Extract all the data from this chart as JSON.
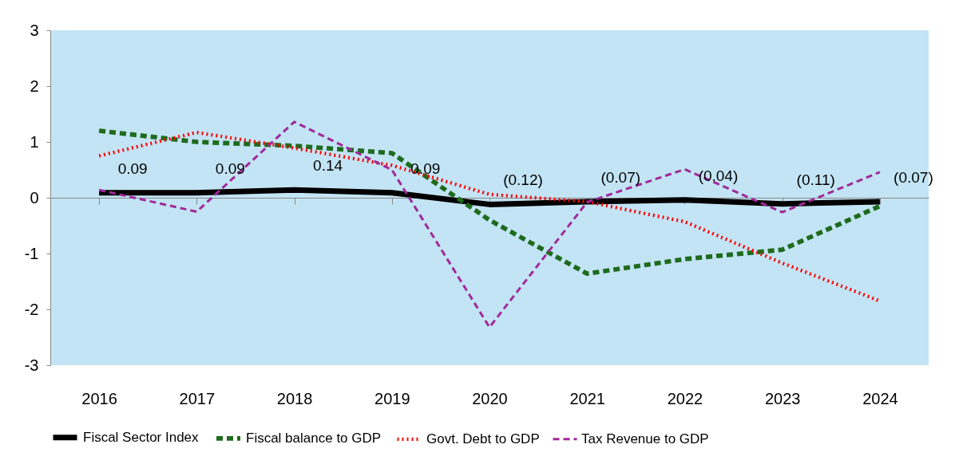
{
  "chart_data": {
    "type": "line",
    "categories": [
      "2016",
      "2017",
      "2018",
      "2019",
      "2020",
      "2021",
      "2022",
      "2023",
      "2024"
    ],
    "ylim": [
      -3,
      3
    ],
    "yticks": [
      -3,
      -2,
      -1,
      0,
      1,
      2,
      3
    ],
    "legend": "bottom",
    "series": [
      {
        "name": "Fiscal Sector Index",
        "color": "#000000",
        "line_style": "solid",
        "values": [
          0.09,
          0.09,
          0.14,
          0.09,
          -0.12,
          -0.07,
          -0.04,
          -0.11,
          -0.07
        ],
        "value_labels": [
          "0.09",
          "0.09",
          "0.14",
          "0.09",
          "(0.12)",
          "(0.07)",
          "(0.04)",
          "(0.11)",
          "(0.07)"
        ]
      },
      {
        "name": "Fiscal balance to GDP",
        "color": "#1e6b1e",
        "line_style": "dashed",
        "values": [
          1.2,
          1.0,
          0.93,
          0.8,
          -0.4,
          -1.36,
          -1.1,
          -0.93,
          -0.15
        ]
      },
      {
        "name": "Govt. Debt to GDP",
        "color": "#ff0000",
        "line_style": "dotted",
        "values": [
          0.75,
          1.17,
          0.89,
          0.58,
          0.06,
          -0.07,
          -0.43,
          -1.17,
          -1.85
        ]
      },
      {
        "name": "Tax Revenue to GDP",
        "color": "#a0299a",
        "line_style": "dashed",
        "values": [
          0.14,
          -0.25,
          1.36,
          0.5,
          -2.32,
          -0.08,
          0.51,
          -0.26,
          0.46
        ]
      }
    ]
  }
}
